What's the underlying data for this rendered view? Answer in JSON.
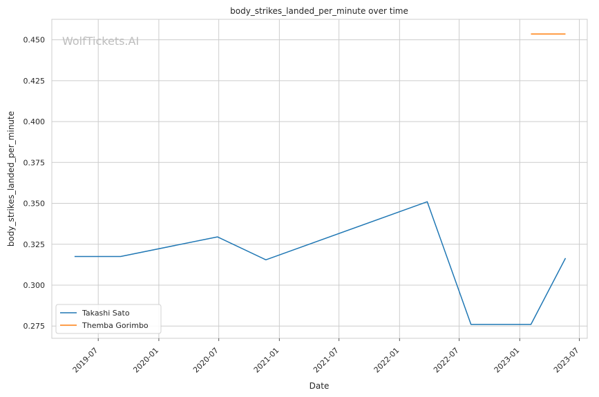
{
  "chart_data": {
    "type": "line",
    "title": "body_strikes_landed_per_minute over time",
    "xlabel": "Date",
    "ylabel": "body_strikes_landed_per_minute",
    "watermark": "WolfTickets.AI",
    "x_ticks": [
      "2019-07",
      "2020-01",
      "2020-07",
      "2021-01",
      "2021-07",
      "2022-01",
      "2022-07",
      "2023-01",
      "2023-07"
    ],
    "y_ticks": [
      "0.275",
      "0.300",
      "0.325",
      "0.350",
      "0.375",
      "0.400",
      "0.425",
      "0.450"
    ],
    "xlim": [
      "2019-02-10",
      "2023-07-25"
    ],
    "ylim": [
      0.2675,
      0.4625
    ],
    "grid": true,
    "legend_position": "lower-left",
    "series": [
      {
        "name": "Takashi Sato",
        "color": "#1f77b4",
        "points": [
          {
            "x": "2019-04-20",
            "y": 0.3175
          },
          {
            "x": "2019-09-07",
            "y": 0.3175
          },
          {
            "x": "2020-06-27",
            "y": 0.3295
          },
          {
            "x": "2020-11-21",
            "y": 0.3155
          },
          {
            "x": "2022-03-26",
            "y": 0.351
          },
          {
            "x": "2022-08-06",
            "y": 0.276
          },
          {
            "x": "2023-02-04",
            "y": 0.276
          },
          {
            "x": "2023-05-20",
            "y": 0.3165
          }
        ]
      },
      {
        "name": "Themba Gorimbo",
        "color": "#ff7f0e",
        "points": [
          {
            "x": "2023-02-04",
            "y": 0.4535
          },
          {
            "x": "2023-05-20",
            "y": 0.4535
          }
        ]
      }
    ]
  }
}
